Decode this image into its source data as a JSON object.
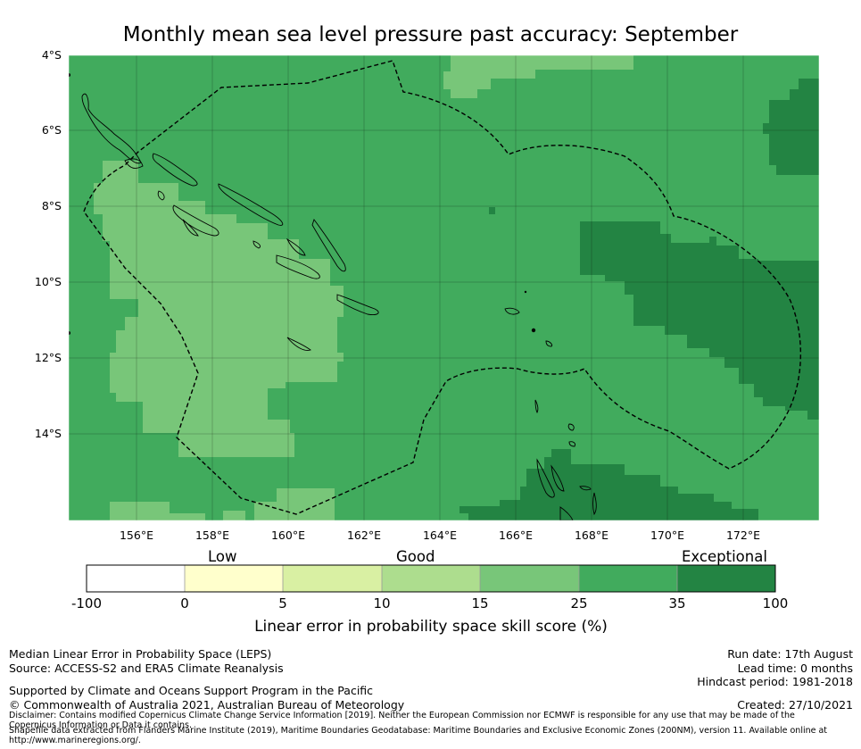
{
  "title": "Monthly mean sea level pressure past accuracy: September",
  "map": {
    "lat_labels": [
      "4°S",
      "6°S",
      "8°S",
      "10°S",
      "12°S",
      "14°S"
    ],
    "lon_labels": [
      "156°E",
      "158°E",
      "160°E",
      "162°E",
      "164°E",
      "166°E",
      "168°E",
      "170°E",
      "172°E"
    ],
    "lon_range": [
      154.0,
      174.0
    ],
    "lat_range": [
      -16.3,
      -4.0
    ],
    "category_colors": {
      "10-15": "#acdc8c",
      "15-25": "#78c679",
      "25-35": "#41ab5d",
      "35-100": "#238443"
    }
  },
  "colorbar": {
    "category_labels": [
      "Low",
      "Good",
      "Exceptional"
    ],
    "ticks": [
      "-100",
      "0",
      "5",
      "10",
      "15",
      "25",
      "35",
      "100"
    ],
    "colors": [
      "#ffffff",
      "#ffffcc",
      "#d9f0a3",
      "#addd8e",
      "#78c679",
      "#41ab5d",
      "#238443"
    ],
    "label": "Linear error in probability space skill score (%)"
  },
  "footer": {
    "line1": "Median Linear Error in Probability Space (LEPS)",
    "line2": "Source: ACCESS-S2 and ERA5 Climate Reanalysis",
    "run_date": "Run date: 17th August",
    "lead_time": "Lead time: 0 months",
    "hindcast": "Hindcast period: 1981-2018",
    "support": "Supported by Climate and Oceans Support Program in the Pacific",
    "copyright": "© Commonwealth of Australia 2021, Australian Bureau of Meteorology",
    "created": "Created: 27/10/2021",
    "disclaimer": "Disclaimer: Contains modified Copernicus Climate Change Service Information [2019]. Neither the European Commission nor ECMWF is responsible for any use that may be made of the Copernicus Information or Data it contains.",
    "shapefile": "Shapefile data extracted from Flanders Marine Institute (2019), Maritime Boundaries Geodatabase: Maritime Boundaries and Exclusive Economic Zones (200NM), version 11. Available online at http://www.marineregions.org/."
  }
}
